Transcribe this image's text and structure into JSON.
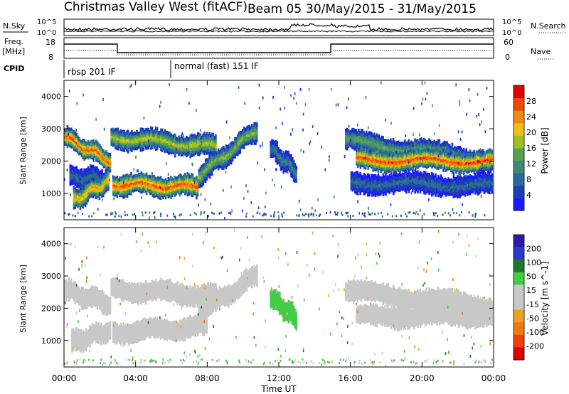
{
  "header": {
    "title": "Christmas Valley West (fitACF)",
    "beam": "Beam 05",
    "dates": "30/May/2015 - 31/May/2015"
  },
  "strip_panels": {
    "nsky": {
      "left_label": "N.Sky",
      "right_label": "N.Search",
      "ticks": [
        "10^5",
        "10^0"
      ],
      "right_ticks": [
        "10^5",
        "10^0"
      ]
    },
    "freq": {
      "left_label_1": "Freq.",
      "left_label_2": "[MHz]",
      "ticks": [
        "18",
        "8"
      ],
      "right_label": "Nave",
      "right_ticks": [
        "60",
        "0"
      ]
    },
    "cpid": {
      "label": "CPID",
      "modes": [
        "rbsp 201 IF",
        "normal (fast) 151 IF"
      ]
    }
  },
  "colors": {
    "power": [
      "#1a1aff",
      "#1f3fb0",
      "#2a6a9a",
      "#3f8a7a",
      "#5aa050",
      "#a0c020",
      "#f0c010",
      "#f08a10",
      "#f04a00",
      "#e00000"
    ],
    "velocity": [
      "#2a1aaa",
      "#2a3acc",
      "#1a7a2a",
      "#44cc44",
      "#c8c8c8",
      "#c8c8c8",
      "#f0a020",
      "#f07a10",
      "#f04010",
      "#e00000"
    ]
  },
  "chart_data": [
    {
      "type": "heatmap",
      "name": "power-panel",
      "xlabel": "",
      "ylabel": "Slant Range [km]",
      "xlim_hours": [
        0,
        24
      ],
      "ylim": [
        180,
        4500
      ],
      "yticks": [
        "1000",
        "2000",
        "3000",
        "4000"
      ],
      "colorbar": {
        "label": "Power [dB]",
        "ticks": [
          "28",
          "24",
          "20",
          "16",
          "12",
          "8",
          "4"
        ],
        "range": [
          0,
          30
        ]
      },
      "echo_bands": [
        {
          "start_hour": 0.0,
          "end_hour": 2.6,
          "range_start_km": 2800,
          "range_end_km": 2050,
          "peak_db": 26
        },
        {
          "start_hour": 0.3,
          "end_hour": 2.5,
          "range_start_km": 1550,
          "range_end_km": 1500,
          "peak_db": 8
        },
        {
          "start_hour": 0.5,
          "end_hour": 2.5,
          "range_start_km": 850,
          "range_end_km": 1450,
          "peak_db": 22
        },
        {
          "start_hour": 2.6,
          "end_hour": 8.5,
          "range_start_km": 2800,
          "range_end_km": 2500,
          "peak_db": 18
        },
        {
          "start_hour": 2.7,
          "end_hour": 7.5,
          "range_start_km": 1350,
          "range_end_km": 1250,
          "peak_db": 26
        },
        {
          "start_hour": 7.5,
          "end_hour": 10.8,
          "range_start_km": 1600,
          "range_end_km": 3050,
          "peak_db": 16
        },
        {
          "start_hour": 11.5,
          "end_hour": 13.0,
          "range_start_km": 2450,
          "range_end_km": 1700,
          "peak_db": 10
        },
        {
          "start_hour": 15.7,
          "end_hour": 24.0,
          "range_start_km": 2700,
          "range_end_km": 2050,
          "peak_db": 14
        },
        {
          "start_hour": 16.3,
          "end_hour": 24.0,
          "range_start_km": 2100,
          "range_end_km": 2050,
          "peak_db": 27
        },
        {
          "start_hour": 16.0,
          "end_hour": 24.0,
          "range_start_km": 1400,
          "range_end_km": 1300,
          "peak_db": 8
        }
      ]
    },
    {
      "type": "heatmap",
      "name": "velocity-panel",
      "xlabel": "Time UT",
      "ylabel": "Slant Range [km]",
      "xlim_hours": [
        0,
        24
      ],
      "ylim": [
        180,
        4500
      ],
      "xticks": [
        "00:00",
        "04:00",
        "08:00",
        "12:00",
        "16:00",
        "20:00",
        "00:00"
      ],
      "yticks": [
        "1000",
        "2000",
        "3000",
        "4000"
      ],
      "colorbar": {
        "label": "Velocity [m s^-1]",
        "ticks": [
          "200",
          "100",
          "50",
          "15",
          "-15",
          "-50",
          "-100",
          "-200"
        ],
        "range": [
          -250,
          250
        ]
      },
      "echo_bands": [
        {
          "start_hour": 0.0,
          "end_hour": 2.6,
          "range_start_km": 2600,
          "range_end_km": 2200,
          "velocity": 0
        },
        {
          "start_hour": 0.4,
          "end_hour": 2.6,
          "range_start_km": 1000,
          "range_end_km": 1400,
          "velocity": 0
        },
        {
          "start_hour": 2.6,
          "end_hour": 8.5,
          "range_start_km": 2650,
          "range_end_km": 2450,
          "velocity": 5
        },
        {
          "start_hour": 2.7,
          "end_hour": 8.0,
          "range_start_km": 1300,
          "range_end_km": 1500,
          "velocity": -10
        },
        {
          "start_hour": 7.5,
          "end_hour": 10.8,
          "range_start_km": 1900,
          "range_end_km": 3100,
          "velocity": -30
        },
        {
          "start_hour": 11.5,
          "end_hour": 13.0,
          "range_start_km": 2400,
          "range_end_km": 1700,
          "velocity": 60
        },
        {
          "start_hour": 15.7,
          "end_hour": 24.0,
          "range_start_km": 2600,
          "range_end_km": 2100,
          "velocity": 0
        },
        {
          "start_hour": 16.3,
          "end_hour": 24.0,
          "range_start_km": 1800,
          "range_end_km": 1850,
          "velocity": 0
        }
      ]
    }
  ]
}
